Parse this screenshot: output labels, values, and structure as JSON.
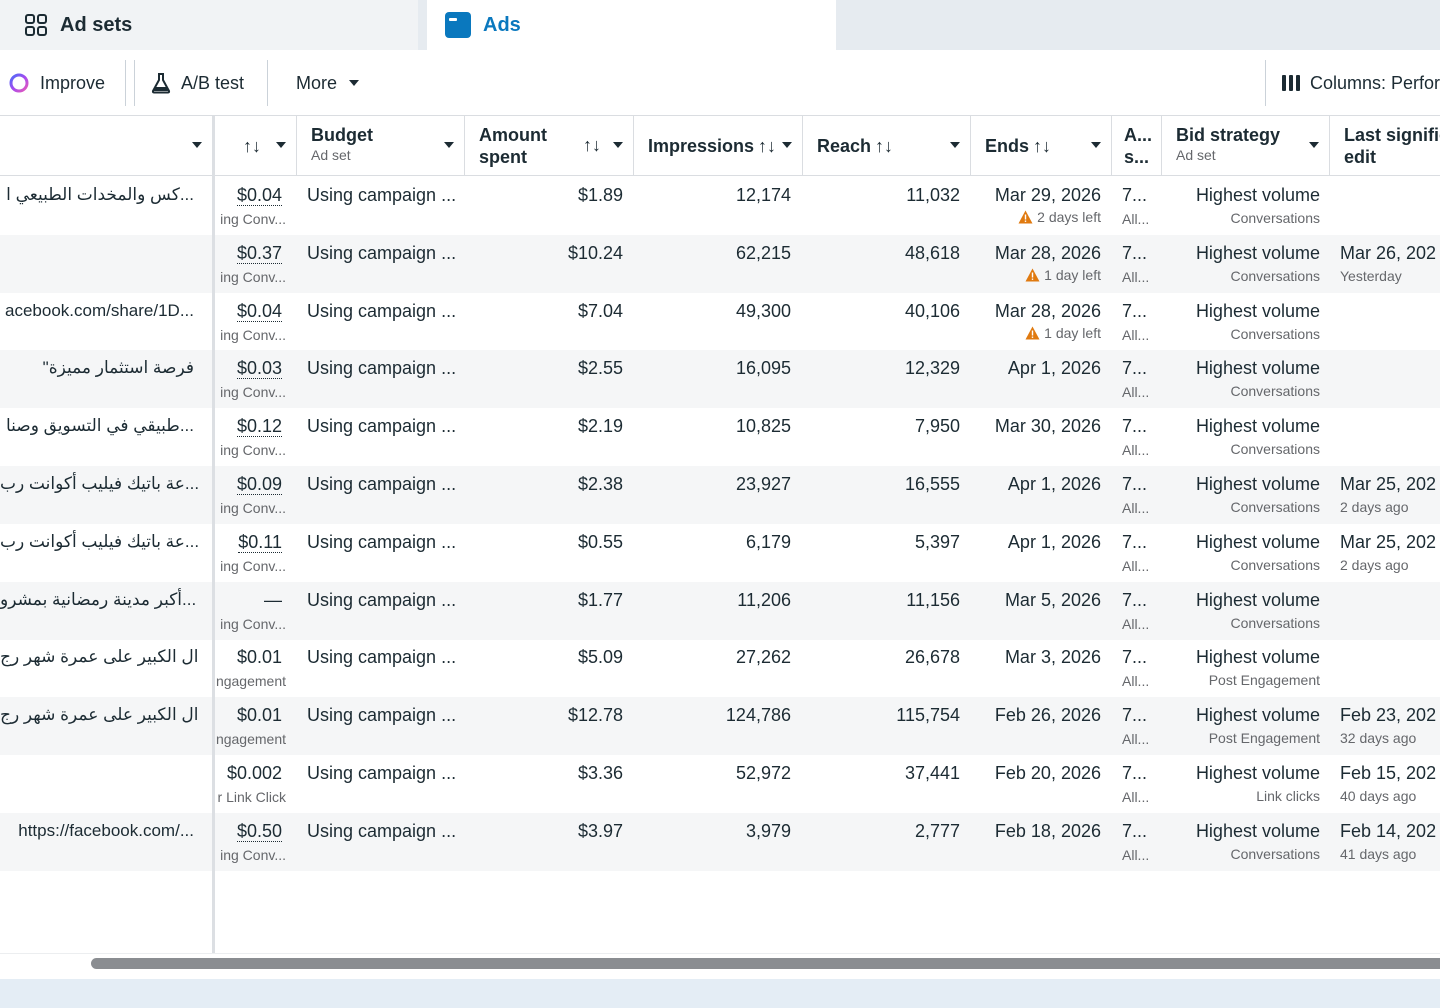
{
  "tabs": {
    "adsets": "Ad sets",
    "ads": "Ads"
  },
  "toolbar": {
    "improve": "Improve",
    "ab_test": "A/B test",
    "more": "More",
    "columns": "Columns: Perfor"
  },
  "headers": {
    "budget": "Budget",
    "budget_sub": "Ad set",
    "amount_spent": "Amount spent",
    "impressions": "Impressions",
    "reach": "Reach",
    "ends": "Ends",
    "a_col": "A... s...",
    "bid_strategy": "Bid strategy",
    "bid_sub": "Ad set",
    "last_edit": "Last signific edit",
    "sort_glyph": "↑↓"
  },
  "rows": [
    {
      "name": "...كس والمخدات الطبيعي ا",
      "cost": "$0.04",
      "cost_sub": "ing Conv...",
      "budget": "Using campaign ...",
      "spent": "$1.89",
      "impressions": "12,174",
      "reach": "11,032",
      "ends": "Mar 29, 2026",
      "ends_sub": "2 days left",
      "a": "7...",
      "a_sub": "All...",
      "bid": "Highest volume",
      "bid_sub": "Conversations",
      "last": "",
      "last_sub": ""
    },
    {
      "name": "",
      "cost": "$0.37",
      "cost_sub": "ing Conv...",
      "budget": "Using campaign ...",
      "spent": "$10.24",
      "impressions": "62,215",
      "reach": "48,618",
      "ends": "Mar 28, 2026",
      "ends_sub": "1 day left",
      "a": "7...",
      "a_sub": "All...",
      "bid": "Highest volume",
      "bid_sub": "Conversations",
      "last": "Mar 26, 202",
      "last_sub": "Yesterday"
    },
    {
      "name": "acebook.com/share/1D...",
      "cost": "$0.04",
      "cost_sub": "ing Conv...",
      "budget": "Using campaign ...",
      "spent": "$7.04",
      "impressions": "49,300",
      "reach": "40,106",
      "ends": "Mar 28, 2026",
      "ends_sub": "1 day left",
      "a": "7...",
      "a_sub": "All...",
      "bid": "Highest volume",
      "bid_sub": "Conversations",
      "last": "",
      "last_sub": ""
    },
    {
      "name": "فرصة استثمار مميزة\"",
      "cost": "$0.03",
      "cost_sub": "ing Conv...",
      "budget": "Using campaign ...",
      "spent": "$2.55",
      "impressions": "16,095",
      "reach": "12,329",
      "ends": "Apr 1, 2026",
      "ends_sub": "",
      "a": "7...",
      "a_sub": "All...",
      "bid": "Highest volume",
      "bid_sub": "Conversations",
      "last": "",
      "last_sub": ""
    },
    {
      "name": "...طبيقي في التسويق وصنا",
      "cost": "$0.12",
      "cost_sub": "ing Conv...",
      "budget": "Using campaign ...",
      "spent": "$2.19",
      "impressions": "10,825",
      "reach": "7,950",
      "ends": "Mar 30, 2026",
      "ends_sub": "",
      "a": "7...",
      "a_sub": "All...",
      "bid": "Highest volume",
      "bid_sub": "Conversations",
      "last": "",
      "last_sub": ""
    },
    {
      "name": "...عة باتيك فيليب أكوانت رب",
      "cost": "$0.09",
      "cost_sub": "ing Conv...",
      "budget": "Using campaign ...",
      "spent": "$2.38",
      "impressions": "23,927",
      "reach": "16,555",
      "ends": "Apr 1, 2026",
      "ends_sub": "",
      "a": "7...",
      "a_sub": "All...",
      "bid": "Highest volume",
      "bid_sub": "Conversations",
      "last": "Mar 25, 202",
      "last_sub": "2 days ago"
    },
    {
      "name": "...عة باتيك فيليب أكوانت رب",
      "cost": "$0.11",
      "cost_sub": "ing Conv...",
      "budget": "Using campaign ...",
      "spent": "$0.55",
      "impressions": "6,179",
      "reach": "5,397",
      "ends": "Apr 1, 2026",
      "ends_sub": "",
      "a": "7...",
      "a_sub": "All...",
      "bid": "Highest volume",
      "bid_sub": "Conversations",
      "last": "Mar 25, 202",
      "last_sub": "2 days ago"
    },
    {
      "name": "...أكبر مدينة رمضانية بمشرو",
      "cost": "—",
      "cost_sub": "ing Conv...",
      "budget": "Using campaign ...",
      "spent": "$1.77",
      "impressions": "11,206",
      "reach": "11,156",
      "ends": "Mar 5, 2026",
      "ends_sub": "",
      "a": "7...",
      "a_sub": "All...",
      "bid": "Highest volume",
      "bid_sub": "Conversations",
      "last": "",
      "last_sub": ""
    },
    {
      "name": "...ال الكبير على عمرة شهر رج",
      "cost": "$0.01",
      "cost_sub": "ngagement",
      "budget": "Using campaign ...",
      "spent": "$5.09",
      "impressions": "27,262",
      "reach": "26,678",
      "ends": "Mar 3, 2026",
      "ends_sub": "",
      "a": "7...",
      "a_sub": "All...",
      "bid": "Highest volume",
      "bid_sub": "Post Engagement",
      "last": "",
      "last_sub": ""
    },
    {
      "name": "...ال الكبير على عمرة شهر رج",
      "cost": "$0.01",
      "cost_sub": "ngagement",
      "budget": "Using campaign ...",
      "spent": "$12.78",
      "impressions": "124,786",
      "reach": "115,754",
      "ends": "Feb 26, 2026",
      "ends_sub": "",
      "a": "7...",
      "a_sub": "All...",
      "bid": "Highest volume",
      "bid_sub": "Post Engagement",
      "last": "Feb 23, 202",
      "last_sub": "32 days ago"
    },
    {
      "name": "",
      "cost": "$0.002",
      "cost_sub": "r Link Click",
      "budget": "Using campaign ...",
      "spent": "$3.36",
      "impressions": "52,972",
      "reach": "37,441",
      "ends": "Feb 20, 2026",
      "ends_sub": "",
      "a": "7...",
      "a_sub": "All...",
      "bid": "Highest volume",
      "bid_sub": "Link clicks",
      "last": "Feb 15, 202",
      "last_sub": "40 days ago"
    },
    {
      "name": "https://facebook.com/...",
      "cost": "$0.50",
      "cost_sub": "ing Conv...",
      "budget": "Using campaign ...",
      "spent": "$3.97",
      "impressions": "3,979",
      "reach": "2,777",
      "ends": "Feb 18, 2026",
      "ends_sub": "",
      "a": "7...",
      "a_sub": "All...",
      "bid": "Highest volume",
      "bid_sub": "Conversations",
      "last": "Feb 14, 202",
      "last_sub": "41 days ago"
    }
  ],
  "colors": {
    "accent": "#0a78be",
    "warning": "#e07a10",
    "alt_row": "#f5f6f7"
  }
}
